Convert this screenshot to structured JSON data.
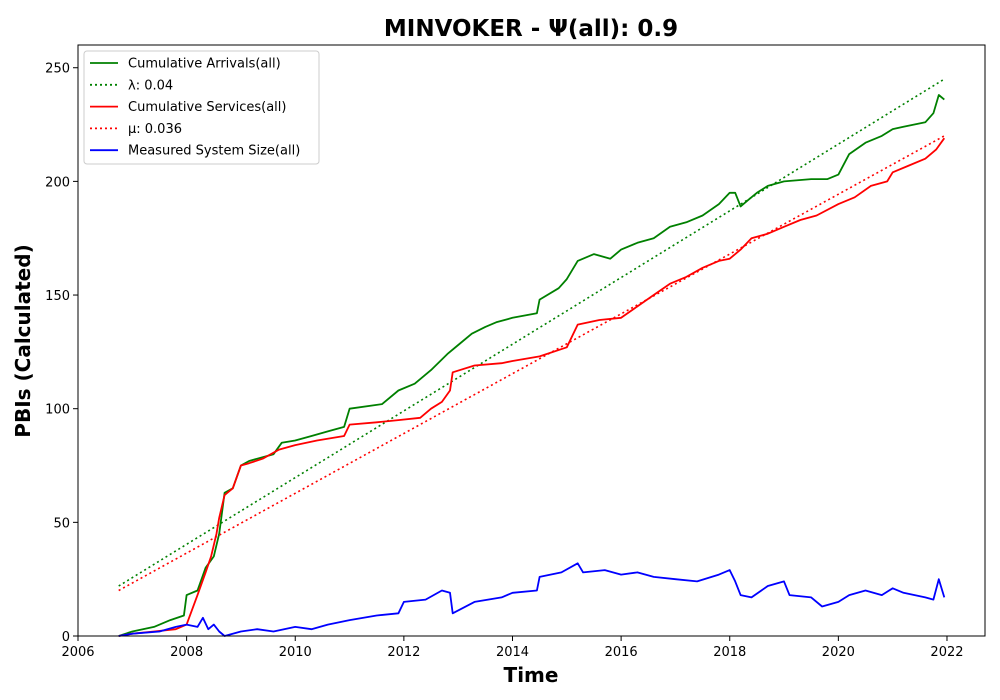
{
  "chart_data": {
    "type": "line",
    "title": "MINVOKER -  Ψ(all): 0.9",
    "xlabel": "Time",
    "ylabel": "PBIs (Calculated)",
    "xlim": [
      2006,
      2022.7
    ],
    "ylim": [
      0,
      260
    ],
    "xticks": [
      2006,
      2008,
      2010,
      2012,
      2014,
      2016,
      2018,
      2020,
      2022
    ],
    "yticks": [
      0,
      50,
      100,
      150,
      200,
      250
    ],
    "grid": false,
    "legend_position": "top-left",
    "series": [
      {
        "name": "Cumulative Arrivals(all)",
        "color": "#008000",
        "style": "solid",
        "x": [
          2006.75,
          2007.0,
          2007.4,
          2007.7,
          2007.95,
          2008.0,
          2008.2,
          2008.35,
          2008.5,
          2008.6,
          2008.7,
          2008.85,
          2009.0,
          2009.15,
          2009.3,
          2009.6,
          2009.75,
          2010.0,
          2010.3,
          2010.6,
          2010.9,
          2011.0,
          2011.6,
          2011.9,
          2012.2,
          2012.5,
          2012.8,
          2013.0,
          2013.25,
          2013.5,
          2013.7,
          2014.0,
          2014.45,
          2014.5,
          2014.85,
          2015.0,
          2015.2,
          2015.5,
          2015.8,
          2016.0,
          2016.3,
          2016.6,
          2016.9,
          2017.2,
          2017.5,
          2017.8,
          2018.0,
          2018.1,
          2018.2,
          2018.35,
          2018.5,
          2018.7,
          2019.0,
          2019.5,
          2019.8,
          2020.0,
          2020.2,
          2020.5,
          2020.8,
          2021.0,
          2021.2,
          2021.6,
          2021.75,
          2021.85,
          2021.95
        ],
        "values": [
          0,
          2,
          4,
          7,
          9,
          18,
          20,
          30,
          35,
          45,
          63,
          65,
          75,
          77,
          78,
          80,
          85,
          86,
          88,
          90,
          92,
          100,
          102,
          108,
          111,
          117,
          124,
          128,
          133,
          136,
          138,
          140,
          142,
          148,
          153,
          157,
          165,
          168,
          166,
          170,
          173,
          175,
          180,
          182,
          185,
          190,
          195,
          195,
          189,
          192,
          195,
          198,
          200,
          201,
          201,
          203,
          212,
          217,
          220,
          223,
          224,
          226,
          230,
          238,
          236
        ]
      },
      {
        "name": "λ: 0.04",
        "color": "#008000",
        "style": "dotted",
        "x": [
          2006.75,
          2021.95
        ],
        "values": [
          22,
          245
        ]
      },
      {
        "name": "Cumulative Services(all)",
        "color": "#ff0000",
        "style": "solid",
        "x": [
          2006.75,
          2007.0,
          2007.4,
          2007.8,
          2008.0,
          2008.2,
          2008.35,
          2008.45,
          2008.55,
          2008.6,
          2008.7,
          2008.85,
          2009.0,
          2009.15,
          2009.4,
          2009.7,
          2010.0,
          2010.4,
          2010.9,
          2011.0,
          2011.5,
          2011.9,
          2012.3,
          2012.5,
          2012.7,
          2012.85,
          2012.9,
          2013.3,
          2013.8,
          2014.0,
          2014.5,
          2015.0,
          2015.2,
          2015.6,
          2016.0,
          2016.3,
          2016.6,
          2016.9,
          2017.2,
          2017.5,
          2017.8,
          2018.0,
          2018.2,
          2018.4,
          2018.7,
          2019.0,
          2019.3,
          2019.6,
          2020.0,
          2020.3,
          2020.6,
          2020.9,
          2021.0,
          2021.3,
          2021.6,
          2021.8,
          2021.95
        ],
        "values": [
          0,
          1,
          2,
          3,
          5,
          18,
          28,
          35,
          45,
          52,
          62,
          65,
          75,
          76,
          78,
          82,
          84,
          86,
          88,
          93,
          94,
          95,
          96,
          100,
          103,
          108,
          116,
          119,
          120,
          121,
          123,
          127,
          137,
          139,
          140,
          145,
          150,
          155,
          158,
          162,
          165,
          166,
          170,
          175,
          177,
          180,
          183,
          185,
          190,
          193,
          198,
          200,
          204,
          207,
          210,
          214,
          219
        ]
      },
      {
        "name": "μ: 0.036",
        "color": "#ff0000",
        "style": "dotted",
        "x": [
          2006.75,
          2021.95
        ],
        "values": [
          20,
          220
        ]
      },
      {
        "name": "Measured System Size(all)",
        "color": "#0000ff",
        "style": "solid",
        "x": [
          2006.75,
          2007.0,
          2007.5,
          2007.8,
          2008.0,
          2008.2,
          2008.3,
          2008.4,
          2008.5,
          2008.6,
          2008.7,
          2009.0,
          2009.3,
          2009.6,
          2010.0,
          2010.3,
          2010.6,
          2011.0,
          2011.5,
          2011.9,
          2012.0,
          2012.4,
          2012.7,
          2012.85,
          2012.9,
          2013.3,
          2013.8,
          2014.0,
          2014.45,
          2014.5,
          2014.9,
          2015.2,
          2015.3,
          2015.7,
          2016.0,
          2016.3,
          2016.6,
          2017.0,
          2017.4,
          2017.8,
          2018.0,
          2018.1,
          2018.2,
          2018.4,
          2018.7,
          2019.0,
          2019.1,
          2019.5,
          2019.7,
          2020.0,
          2020.2,
          2020.5,
          2020.8,
          2021.0,
          2021.2,
          2021.6,
          2021.75,
          2021.85,
          2021.95
        ],
        "values": [
          0,
          1,
          2,
          4,
          5,
          4,
          8,
          3,
          5,
          2,
          0,
          2,
          3,
          2,
          4,
          3,
          5,
          7,
          9,
          10,
          15,
          16,
          20,
          19,
          10,
          15,
          17,
          19,
          20,
          26,
          28,
          32,
          28,
          29,
          27,
          28,
          26,
          25,
          24,
          27,
          29,
          24,
          18,
          17,
          22,
          24,
          18,
          17,
          13,
          15,
          18,
          20,
          18,
          21,
          19,
          17,
          16,
          25,
          17
        ]
      }
    ]
  }
}
